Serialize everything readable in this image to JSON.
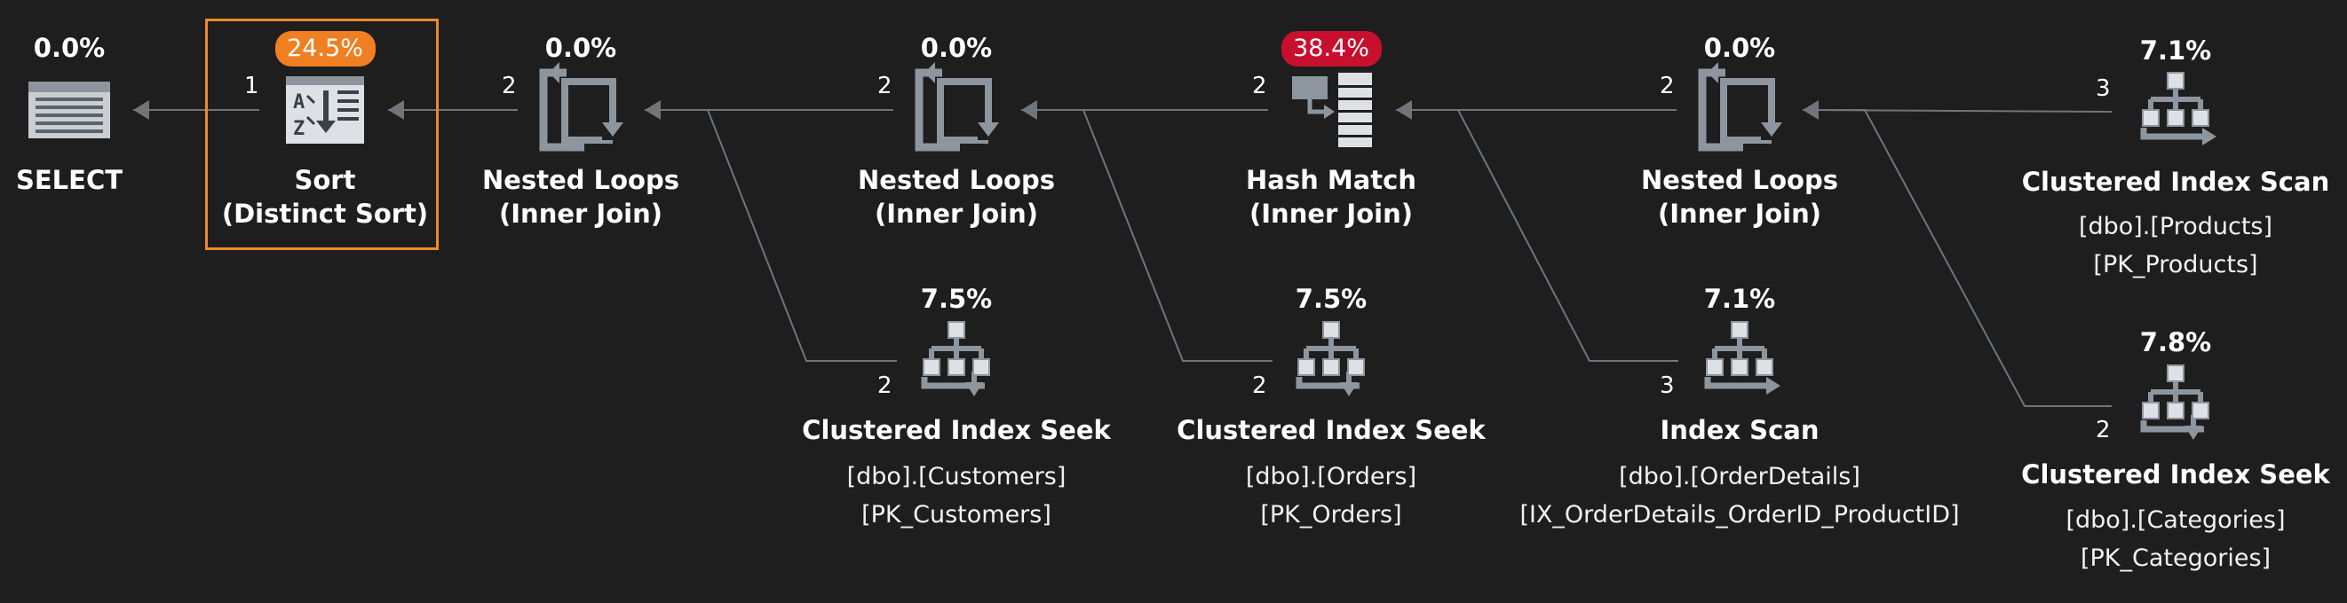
{
  "colors": {
    "background": "#1e1e1e",
    "edge": "#6f757b",
    "icon": "#8d969e",
    "pill_orange": "#f07f22",
    "pill_red": "#c8102e",
    "selection": "#f08a2c"
  },
  "nodes": [
    {
      "id": "select",
      "icon": "select-icon",
      "cost": "0.0%",
      "name1": "SELECT",
      "name2": "",
      "sub1": "",
      "sub2": ""
    },
    {
      "id": "sort",
      "icon": "sort-icon",
      "cost": "24.5%",
      "name1": "Sort",
      "name2": "(Distinct Sort)",
      "sub1": "",
      "sub2": "",
      "highlight": "orange",
      "selected": true
    },
    {
      "id": "nl1",
      "icon": "nested-loops-icon",
      "cost": "0.0%",
      "name1": "Nested Loops",
      "name2": "(Inner Join)",
      "sub1": "",
      "sub2": ""
    },
    {
      "id": "nl2",
      "icon": "nested-loops-icon",
      "cost": "0.0%",
      "name1": "Nested Loops",
      "name2": "(Inner Join)",
      "sub1": "",
      "sub2": ""
    },
    {
      "id": "hash",
      "icon": "hash-match-icon",
      "cost": "38.4%",
      "name1": "Hash Match",
      "name2": "(Inner Join)",
      "sub1": "",
      "sub2": "",
      "highlight": "red"
    },
    {
      "id": "nl3",
      "icon": "nested-loops-icon",
      "cost": "0.0%",
      "name1": "Nested Loops",
      "name2": "(Inner Join)",
      "sub1": "",
      "sub2": ""
    },
    {
      "id": "scan_products",
      "icon": "clustered-index-scan-icon",
      "cost": "7.1%",
      "name1": "Clustered Index Scan",
      "name2": "",
      "sub1": "[dbo].[Products]",
      "sub2": "[PK_Products]"
    },
    {
      "id": "seek_customers",
      "icon": "clustered-index-seek-icon",
      "cost": "7.5%",
      "name1": "Clustered Index Seek",
      "name2": "",
      "sub1": "[dbo].[Customers]",
      "sub2": "[PK_Customers]"
    },
    {
      "id": "seek_orders",
      "icon": "clustered-index-seek-icon",
      "cost": "7.5%",
      "name1": "Clustered Index Seek",
      "name2": "",
      "sub1": "[dbo].[Orders]",
      "sub2": "[PK_Orders]"
    },
    {
      "id": "index_scan",
      "icon": "index-scan-icon",
      "cost": "7.1%",
      "name1": "Index Scan",
      "name2": "",
      "sub1": "[dbo].[OrderDetails]",
      "sub2": "[IX_OrderDetails_OrderID_ProductID]"
    },
    {
      "id": "seek_categories",
      "icon": "clustered-index-seek-icon",
      "cost": "7.8%",
      "name1": "Clustered Index Seek",
      "name2": "",
      "sub1": "[dbo].[Categories]",
      "sub2": "[PK_Categories]"
    }
  ],
  "edges": [
    {
      "from": "sort",
      "to": "select",
      "rows": "1"
    },
    {
      "from": "nl1",
      "to": "sort",
      "rows": "2"
    },
    {
      "from": "nl2",
      "to": "nl1",
      "rows": "2"
    },
    {
      "from": "seek_customers",
      "to": "nl1",
      "rows": "2"
    },
    {
      "from": "hash",
      "to": "nl2",
      "rows": "2"
    },
    {
      "from": "seek_orders",
      "to": "nl2",
      "rows": "2"
    },
    {
      "from": "nl3",
      "to": "hash",
      "rows": "2"
    },
    {
      "from": "index_scan",
      "to": "hash",
      "rows": "3"
    },
    {
      "from": "scan_products",
      "to": "nl3",
      "rows": "3"
    },
    {
      "from": "seek_categories",
      "to": "nl3",
      "rows": "2"
    }
  ]
}
